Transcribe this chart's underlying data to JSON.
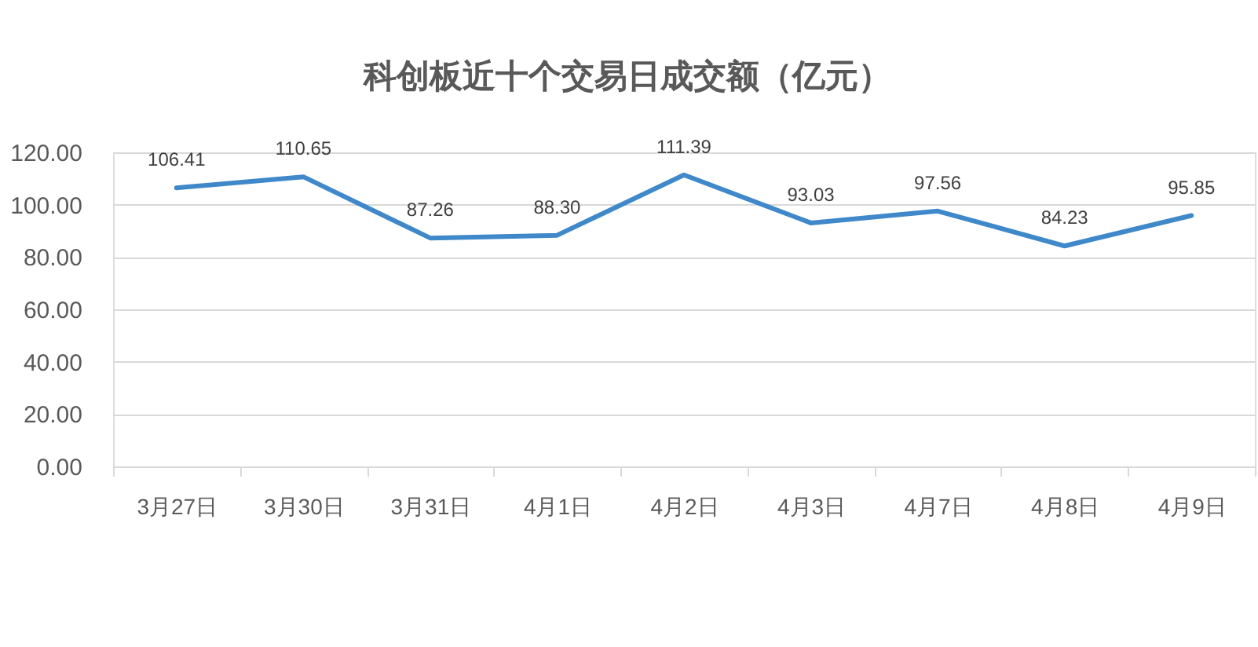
{
  "chart_data": {
    "type": "line",
    "title": "科创板近十个交易日成交额（亿元）",
    "categories": [
      "3月27日",
      "3月30日",
      "3月31日",
      "4月1日",
      "4月2日",
      "4月3日",
      "4月7日",
      "4月8日",
      "4月9日"
    ],
    "values": [
      106.41,
      110.65,
      87.26,
      88.3,
      111.39,
      93.03,
      97.56,
      84.23,
      95.85
    ],
    "value_labels": [
      "106.41",
      "110.65",
      "87.26",
      "88.30",
      "111.39",
      "93.03",
      "97.56",
      "84.23",
      "95.85"
    ],
    "color": "#3f88c9",
    "ylim": [
      0,
      120
    ],
    "yticks": [
      {
        "value": 0,
        "label": "0.00"
      },
      {
        "value": 20,
        "label": "20.00"
      },
      {
        "value": 40,
        "label": "40.00"
      },
      {
        "value": 60,
        "label": "60.00"
      },
      {
        "value": 80,
        "label": "80.00"
      },
      {
        "value": 100,
        "label": "100.00"
      },
      {
        "value": 120,
        "label": "120.00"
      }
    ],
    "grid": "y",
    "line_style": "solid"
  }
}
